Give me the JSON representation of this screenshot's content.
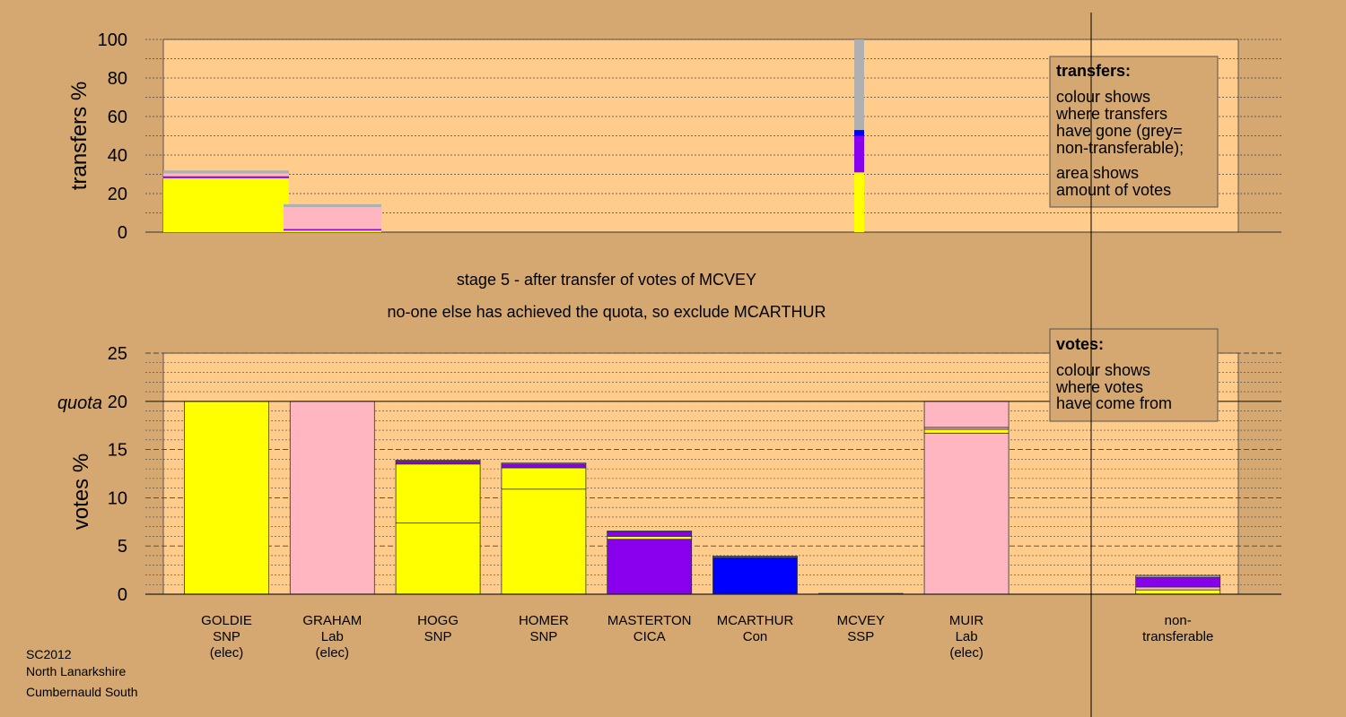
{
  "chart_data": [
    {
      "type": "bar",
      "stacked": true,
      "panel": "transfers",
      "ylabel": "transfers %",
      "ylim": [
        0,
        100
      ],
      "yticks": [
        0,
        20,
        40,
        60,
        80,
        100
      ],
      "grid": true,
      "legend": {
        "placement": "top-right",
        "title": "transfers:",
        "lines": [
          "colour shows",
          "where transfers",
          "have gone (grey=",
          "non-transferable);",
          "area shows",
          "amount of votes"
        ]
      },
      "columns": [
        {
          "key": "GOLDIE",
          "segments": [
            {
              "color": "#ffff00",
              "value": 28
            },
            {
              "color": "#8800ee",
              "value": 1
            },
            {
              "color": "#ffb6c1",
              "value": 1.5
            },
            {
              "color": "#b0b0b0",
              "value": 1.5
            }
          ]
        },
        {
          "key": "GRAHAM",
          "segments": [
            {
              "color": "#ffff00",
              "value": 0.8
            },
            {
              "color": "#8800ee",
              "value": 0.8
            },
            {
              "color": "#ffb6c1",
              "value": 11.4
            },
            {
              "color": "#b0b0b0",
              "value": 1.5
            }
          ]
        },
        {
          "key": "MCVEY",
          "segments": [
            {
              "color": "#ffff00",
              "value": 31
            },
            {
              "color": "#8800ee",
              "value": 19
            },
            {
              "color": "#0000ff",
              "value": 3
            },
            {
              "color": "#b0b0b0",
              "value": 47
            }
          ]
        }
      ]
    },
    {
      "type": "bar",
      "stacked": true,
      "panel": "votes",
      "ylabel": "votes %",
      "ylim": [
        0,
        25
      ],
      "yticks": [
        0,
        5,
        10,
        15,
        20,
        25
      ],
      "quota": 20,
      "quota_label": "quota",
      "grid": true,
      "legend": {
        "placement": "top-right",
        "title": "votes:",
        "lines": [
          "colour shows",
          "where votes",
          "have come from"
        ]
      },
      "categories": [
        [
          "GOLDIE",
          "SNP",
          "(elec)"
        ],
        [
          "GRAHAM",
          "Lab",
          "(elec)"
        ],
        [
          "HOGG",
          "SNP"
        ],
        [
          "HOMER",
          "SNP"
        ],
        [
          "MASTERTON",
          "CICA"
        ],
        [
          "MCARTHUR",
          "Con"
        ],
        [
          "MCVEY",
          "SSP"
        ],
        [
          "MUIR",
          "Lab",
          "(elec)"
        ],
        [],
        [
          "non-",
          "transferable"
        ]
      ],
      "bars": [
        [
          {
            "color": "#ffff00",
            "value": 20
          }
        ],
        [
          {
            "color": "#ffb6c1",
            "value": 20
          }
        ],
        [
          {
            "color": "#ffff00",
            "value": 7.4
          },
          {
            "color": "#ffff00",
            "value": 6.1
          },
          {
            "color": "#8800ee",
            "value": 0.3
          },
          {
            "color": "#ffb6c1",
            "value": 0.1
          }
        ],
        [
          {
            "color": "#ffff00",
            "value": 10.9
          },
          {
            "color": "#ffff00",
            "value": 2.2
          },
          {
            "color": "#8800ee",
            "value": 0.4
          },
          {
            "color": "#ffb6c1",
            "value": 0.1
          }
        ],
        [
          {
            "color": "#8800ee",
            "value": 5.7
          },
          {
            "color": "#ffff00",
            "value": 0.3
          },
          {
            "color": "#8800ee",
            "value": 0.5
          },
          {
            "color": "#ffb6c1",
            "value": 0.05
          }
        ],
        [
          {
            "color": "#0000ff",
            "value": 3.8
          },
          {
            "color": "#ffff00",
            "value": 0.1
          },
          {
            "color": "#8800ee",
            "value": 0.05
          }
        ],
        [
          {
            "color": "#ffff00",
            "value": 0.08
          }
        ],
        [
          {
            "color": "#ffb6c1",
            "value": 16.7
          },
          {
            "color": "#ffff00",
            "value": 0.4
          },
          {
            "color": "#ffb6c1",
            "value": 0.2
          },
          {
            "color": "#ffb6c1",
            "value": 2.7
          }
        ],
        [],
        [
          {
            "color": "#ffff00",
            "value": 0.45
          },
          {
            "color": "#ffb6c1",
            "value": 0.3
          },
          {
            "color": "#8800ee",
            "value": 1.0
          },
          {
            "color": "#b0b0b0",
            "value": 0.2
          }
        ]
      ]
    }
  ],
  "captions": {
    "stage": "stage 5 - after transfer of votes of MCVEY",
    "action": "no-one else has achieved the quota, so exclude MCARTHUR"
  },
  "footer": [
    "SC2012",
    "North Lanarkshire",
    "Cumbernauld South"
  ],
  "colors": {
    "background": "#d4a870",
    "plot": "#ffcc8c",
    "SNP": "#ffff00",
    "Lab": "#ffb6c1",
    "CICA": "#8800ee",
    "Con": "#0000ff",
    "non-transferable": "#b0b0b0"
  }
}
